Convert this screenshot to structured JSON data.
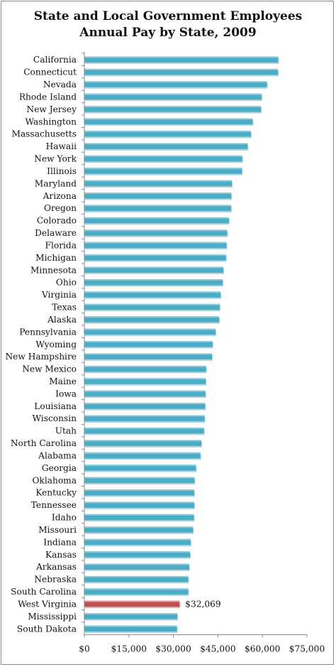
{
  "chart_data": {
    "type": "bar",
    "orientation": "horizontal",
    "title": "State and Local Government Employees",
    "subtitle": "Annual Pay by State, 2009",
    "xlabel": "",
    "ylabel": "",
    "xlim": [
      0,
      75000
    ],
    "x_ticks": [
      0,
      15000,
      30000,
      45000,
      60000,
      75000
    ],
    "x_tick_labels": [
      "$0",
      "$15,000",
      "$30,000",
      "$45,000",
      "$60,000",
      "$75,000"
    ],
    "grid": false,
    "legend": "none",
    "bar_color": "#4bacc6",
    "highlight_color": "#c0504d",
    "highlight_category": "West Virginia",
    "annotations": [
      {
        "category": "West Virginia",
        "text": "$32,069"
      }
    ],
    "categories": [
      "California",
      "Connecticut",
      "Nevada",
      "Rhode Island",
      "New Jersey",
      "Washington",
      "Massachusetts",
      "Hawaii",
      "New York",
      "Illinois",
      "Maryland",
      "Arizona",
      "Oregon",
      "Colorado",
      "Delaware",
      "Florida",
      "Michigan",
      "Minnesota",
      "Ohio",
      "Virginia",
      "Texas",
      "Alaska",
      "Pennsylvania",
      "Wyoming",
      "New Hampshire",
      "New Mexico",
      "Maine",
      "Iowa",
      "Louisiana",
      "Wisconsin",
      "Utah",
      "North Carolina",
      "Alabama",
      "Georgia",
      "Oklahoma",
      "Kentucky",
      "Tennessee",
      "Idaho",
      "Missouri",
      "Indiana",
      "Kansas",
      "Arkansas",
      "Nebraska",
      "South Carolina",
      "West Virginia",
      "Mississippi",
      "South Dakota"
    ],
    "values": [
      65300,
      65200,
      61500,
      59700,
      59500,
      56700,
      56100,
      55000,
      53200,
      53100,
      49700,
      49500,
      49400,
      48700,
      48100,
      47900,
      47700,
      46800,
      46600,
      45900,
      45600,
      45400,
      44200,
      43200,
      43000,
      41000,
      40900,
      40800,
      40700,
      40500,
      40300,
      39400,
      39100,
      37600,
      37100,
      37000,
      37000,
      36900,
      36600,
      35800,
      35600,
      35300,
      35000,
      35000,
      32069,
      31300,
      31200
    ]
  }
}
